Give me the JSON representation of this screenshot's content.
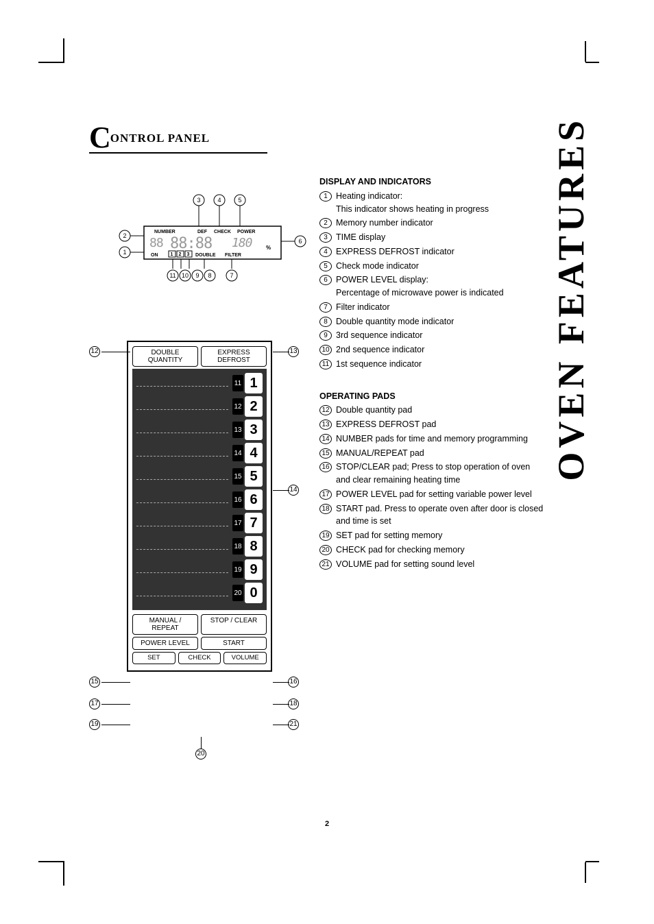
{
  "side_title": "OVEN FEATURES",
  "section_title": "ONTROL PANEL",
  "page_number": "2",
  "display_labels": {
    "number": "NUMBER",
    "def": "DEF",
    "check": "CHECK",
    "power": "POWER",
    "on": "ON",
    "double": "DOUBLE",
    "filter": "FILTER",
    "percent": "%",
    "seq": [
      "1",
      "2",
      "3"
    ],
    "segment_sample": "88  88:88 180"
  },
  "display_callouts": [
    "1",
    "2",
    "3",
    "4",
    "5",
    "6",
    "7",
    "8",
    "9",
    "10",
    "11"
  ],
  "indicators_header": "DISPLAY AND INDICATORS",
  "indicators": [
    "Heating indicator:\nThis indicator shows heating in progress",
    "Memory number indicator",
    "TIME display",
    "EXPRESS DEFROST indicator",
    "Check mode indicator",
    "POWER LEVEL display:\nPercentage of microwave power is indicated",
    "Filter indicator",
    "Double quantity mode indicator",
    "3rd sequence indicator",
    "2nd sequence indicator",
    "1st sequence indicator"
  ],
  "pads_header": "OPERATING PADS",
  "pads": [
    "Double quantity pad",
    "EXPRESS DEFROST pad",
    "NUMBER pads for time and memory programming",
    "MANUAL/REPEAT pad",
    "STOP/CLEAR pad; Press to stop operation of oven and clear remaining heating time",
    "POWER LEVEL pad for setting variable power level",
    "START pad. Press to operate oven after door is closed and time is set",
    "SET pad for setting memory",
    "CHECK pad for checking memory",
    "VOLUME pad for setting sound level"
  ],
  "keypad": {
    "top_left": "DOUBLE\nQUANTITY",
    "top_right": "EXPRESS\nDEFROST",
    "numbers": [
      {
        "small": "11",
        "big": "1"
      },
      {
        "small": "12",
        "big": "2"
      },
      {
        "small": "13",
        "big": "3"
      },
      {
        "small": "14",
        "big": "4"
      },
      {
        "small": "15",
        "big": "5"
      },
      {
        "small": "16",
        "big": "6"
      },
      {
        "small": "17",
        "big": "7"
      },
      {
        "small": "18",
        "big": "8"
      },
      {
        "small": "19",
        "big": "9"
      },
      {
        "small": "20",
        "big": "0"
      }
    ],
    "manual": "MANUAL /\nREPEAT",
    "stopclear": "STOP / CLEAR",
    "powerlevel": "POWER LEVEL",
    "start": "START",
    "set": "SET",
    "check": "CHECK",
    "volume": "VOLUME"
  },
  "keypad_callouts": {
    "12": "12",
    "13": "13",
    "14": "14",
    "15": "15",
    "16": "16",
    "17": "17",
    "18": "18",
    "19": "19",
    "20": "20",
    "21": "21"
  },
  "colors": {
    "text": "#000000",
    "keypad_dark": "#333333",
    "dash": "#aaaaaa"
  }
}
